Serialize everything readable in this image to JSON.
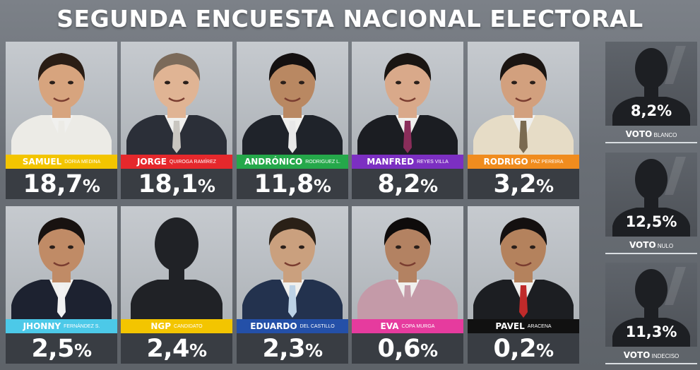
{
  "title": "SEGUNDA ENCUESTA NACIONAL ELECTORAL",
  "chart_data": {
    "type": "bar",
    "title": "SEGUNDA ENCUESTA NACIONAL ELECTORAL",
    "categories": [
      "SAMUEL DORIA MEDINA",
      "JORGE QUIROGA RAMÍREZ",
      "ANDRÓNICO RODRÍGUEZ L.",
      "MANFRED REYES VILLA",
      "RODRIGO PAZ PEREIRA",
      "JHONNY FERNÁNDEZ S.",
      "NGP CANDIDATO",
      "EDUARDO DEL CASTILLO",
      "EVA COPA MURGA",
      "PAVEL ARACENA",
      "VOTO BLANCO",
      "VOTO NULO",
      "VOTO INDECISO"
    ],
    "values": [
      18.7,
      18.1,
      11.8,
      8.2,
      3.2,
      2.5,
      2.4,
      2.3,
      0.6,
      0.2,
      8.2,
      12.5,
      11.3
    ],
    "unit": "%"
  },
  "candidates": [
    {
      "first": "SAMUEL",
      "last": "DORIA MEDINA",
      "pct": "18,7",
      "color": "#f3c500",
      "skin": "#d7a47e",
      "hair": "#2a1d15",
      "suit": "#ecebe6",
      "tie": "#ecebe6"
    },
    {
      "first": "JORGE",
      "last": "QUIROGA RAMÍREZ",
      "pct": "18,1",
      "color": "#e5282c",
      "skin": "#e0b494",
      "hair": "#7b6a5a",
      "suit": "#2b2f38",
      "tie": "#c9c6c0"
    },
    {
      "first": "ANDRÓNICO",
      "last": "RODRIGUEZ L.",
      "pct": "11,8",
      "color": "#25a84a",
      "skin": "#b98862",
      "hair": "#141010",
      "suit": "#1f232a",
      "tie": "#e8e8e8"
    },
    {
      "first": "MANFRED",
      "last": "REYES VILLA",
      "pct": "8,2",
      "color": "#7c2fc2",
      "skin": "#d9a98a",
      "hair": "#1a1512",
      "suit": "#1b1d22",
      "tie": "#8a2d5a"
    },
    {
      "first": "RODRIGO",
      "last": "PAZ PEREIRA",
      "pct": "3,2",
      "color": "#f08c1e",
      "skin": "#d2a07e",
      "hair": "#1b1512",
      "suit": "#e6dcc6",
      "tie": "#7a6a50"
    },
    {
      "first": "JHONNY",
      "last": "FERNÁNDEZ S.",
      "pct": "2,5",
      "color": "#4cc9e8",
      "skin": "#c08b66",
      "hair": "#181210",
      "suit": "#1d2230",
      "tie": "#f2f2f2"
    },
    {
      "first": "NGP",
      "last": "CANDIDATO",
      "pct": "2,4",
      "color": "#f3c500",
      "skin": "#202226",
      "hair": "#202226",
      "suit": "#202226",
      "tie": "#202226",
      "silhouette": true
    },
    {
      "first": "EDUARDO",
      "last": "DEL CASTILLO",
      "pct": "2,3",
      "color": "#2450a8",
      "skin": "#caa07e",
      "hair": "#2a2017",
      "suit": "#23324e",
      "tie": "#bcd2e6"
    },
    {
      "first": "EVA",
      "last": "COPA MURGA",
      "pct": "0,6",
      "color": "#e63b9e",
      "skin": "#b38262",
      "hair": "#0e0b0b",
      "suit": "#c49aa8",
      "tie": "#c49aa8"
    },
    {
      "first": "PAVEL",
      "last": "ARACENA",
      "pct": "0,2",
      "color": "#111111",
      "skin": "#b4825d",
      "hair": "#141010",
      "suit": "#1c1e22",
      "tie": "#c02a2a"
    }
  ],
  "side": [
    {
      "pct": "8,2%",
      "word": "VOTO",
      "kind": "BLANCO"
    },
    {
      "pct": "12,5%",
      "word": "VOTO",
      "kind": "NULO"
    },
    {
      "pct": "11,3%",
      "word": "VOTO",
      "kind": "INDECISO"
    }
  ],
  "percent_sign": "%"
}
